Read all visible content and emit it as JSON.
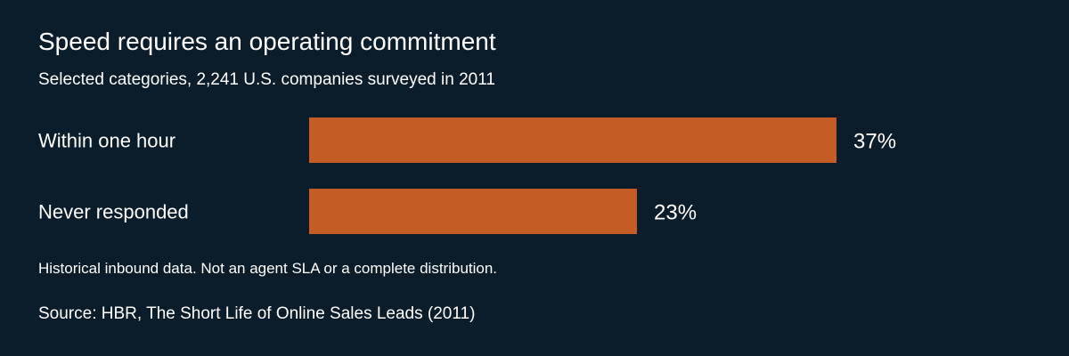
{
  "chart_data": {
    "type": "bar",
    "orientation": "horizontal",
    "title": "Speed requires an operating commitment",
    "subtitle": "Selected categories, 2,241 U.S. companies surveyed in 2011",
    "categories": [
      "Within one hour",
      "Never responded"
    ],
    "values": [
      37,
      23
    ],
    "value_labels": [
      "37%",
      "23%"
    ],
    "xlim": [
      0,
      37
    ],
    "grid": false,
    "bar_color": "#c55c26",
    "background_color": "#0b1c2b",
    "text_color": "#ffffff"
  },
  "footer": {
    "note": "Historical inbound data. Not an agent SLA or a complete distribution.",
    "source": "Source: HBR, The Short Life of Online Sales Leads (2011)"
  }
}
